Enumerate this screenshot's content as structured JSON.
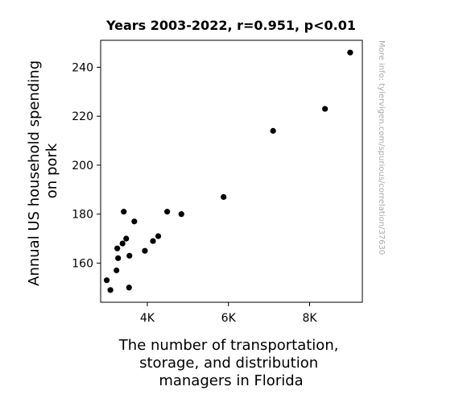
{
  "chart_data": {
    "type": "scatter",
    "title": "Years 2003-2022, r=0.951, p<0.01",
    "xlabel": [
      "The number of transportation,",
      "storage, and distribution",
      "managers in Florida"
    ],
    "ylabel": [
      "Annual US household spending",
      "on pork"
    ],
    "xlim": [
      2850,
      9300
    ],
    "ylim": [
      144,
      251
    ],
    "xticks": [
      {
        "value": 4000,
        "label": "4K"
      },
      {
        "value": 6000,
        "label": "6K"
      },
      {
        "value": 8000,
        "label": "8K"
      }
    ],
    "yticks": [
      {
        "value": 160,
        "label": "160"
      },
      {
        "value": 180,
        "label": "180"
      },
      {
        "value": 200,
        "label": "200"
      },
      {
        "value": 220,
        "label": "220"
      },
      {
        "value": 240,
        "label": "240"
      }
    ],
    "grid": false,
    "marker_color": "#000000",
    "points": [
      {
        "x": 3000,
        "y": 153
      },
      {
        "x": 3090,
        "y": 149
      },
      {
        "x": 3240,
        "y": 157
      },
      {
        "x": 3260,
        "y": 166
      },
      {
        "x": 3280,
        "y": 162
      },
      {
        "x": 3390,
        "y": 168
      },
      {
        "x": 3420,
        "y": 181
      },
      {
        "x": 3480,
        "y": 170
      },
      {
        "x": 3550,
        "y": 150
      },
      {
        "x": 3560,
        "y": 163
      },
      {
        "x": 3680,
        "y": 177
      },
      {
        "x": 3940,
        "y": 165
      },
      {
        "x": 4140,
        "y": 169
      },
      {
        "x": 4270,
        "y": 171
      },
      {
        "x": 4490,
        "y": 181
      },
      {
        "x": 4840,
        "y": 180
      },
      {
        "x": 5880,
        "y": 187
      },
      {
        "x": 7100,
        "y": 214
      },
      {
        "x": 8380,
        "y": 223
      },
      {
        "x": 9000,
        "y": 246
      }
    ],
    "watermark": "More info: tylervigen.com/spurious/correlation/37630"
  }
}
